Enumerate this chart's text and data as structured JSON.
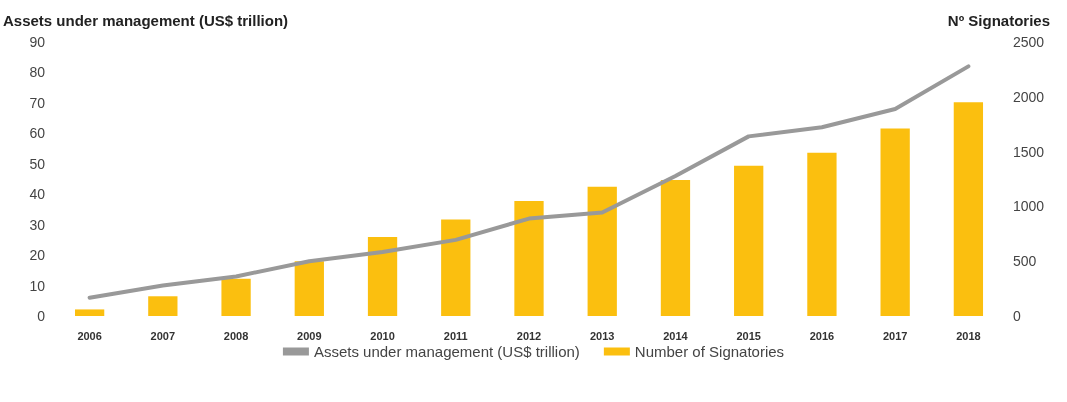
{
  "chart_data": {
    "type": "bar",
    "ylabel": "Assets under management (US$ trillion)",
    "y2label": "Nº Signatories",
    "categories": [
      "2006",
      "2007",
      "2008",
      "2009",
      "2010",
      "2011",
      "2012",
      "2013",
      "2014",
      "2015",
      "2016",
      "2017",
      "2018"
    ],
    "series": [
      {
        "name": "Assets under management (US$ trillion)",
        "type": "line",
        "color": "#999999",
        "values": [
          6,
          10,
          13,
          18,
          21,
          25,
          32,
          34,
          46,
          59,
          62,
          68,
          82
        ]
      },
      {
        "name": "Number of Signatories",
        "type": "bar",
        "axis": "y2",
        "color": "#fbbf0f",
        "values": [
          60,
          180,
          340,
          500,
          720,
          880,
          1050,
          1180,
          1240,
          1370,
          1490,
          1710,
          1950
        ]
      }
    ],
    "ylim": [
      0,
      90
    ],
    "yticks": [
      0,
      10,
      20,
      30,
      40,
      50,
      60,
      70,
      80,
      90
    ],
    "y2lim": [
      0,
      2500
    ],
    "y2ticks": [
      0,
      500,
      1000,
      1500,
      2000,
      2500
    ],
    "grid": false,
    "legend": "bottom",
    "marker": "none",
    "line_style": "solid"
  }
}
